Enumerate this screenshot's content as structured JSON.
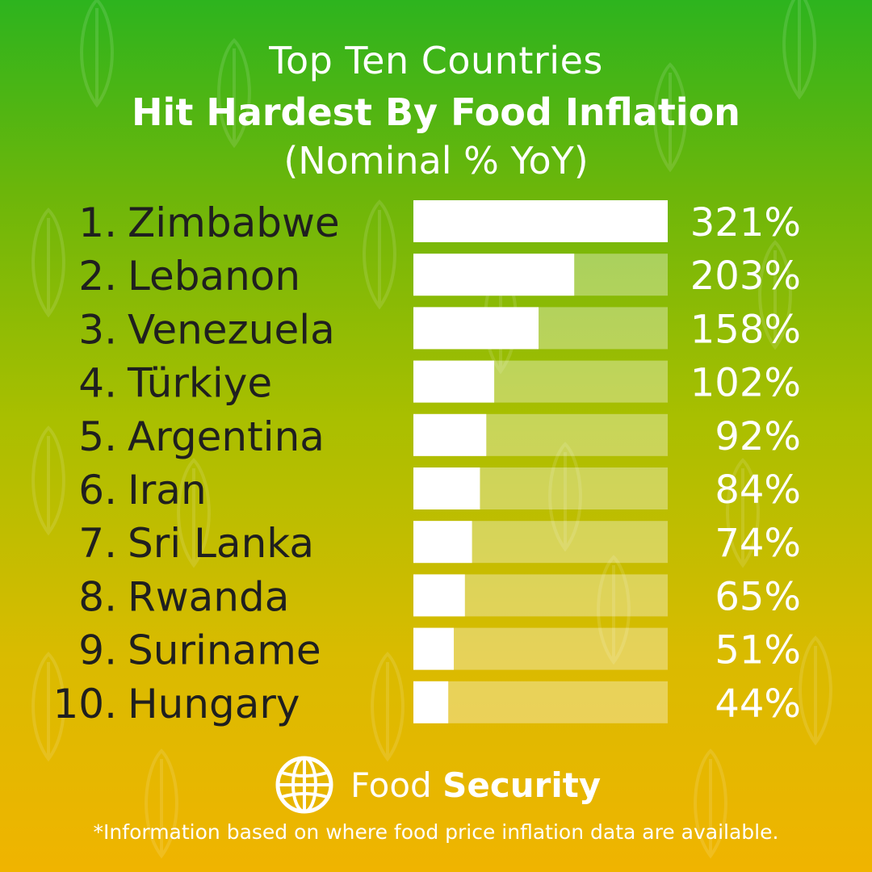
{
  "title": {
    "line1": "Top Ten Countries",
    "line2": "Hit Hardest By Food Inflation",
    "line3": "(Nominal % YoY)"
  },
  "colors": {
    "bar_fill": "#ffffff",
    "bar_track": "rgba(255,255,255,0.35)",
    "text_dark": "#1f1f1f",
    "text_light": "#ffffff",
    "gradient_top": "#2db41e",
    "gradient_bottom": "#f0b400"
  },
  "chart_data": {
    "type": "bar",
    "orientation": "horizontal",
    "categories": [
      "Zimbabwe",
      "Lebanon",
      "Venezuela",
      "Türkiye",
      "Argentina",
      "Iran",
      "Sri Lanka",
      "Rwanda",
      "Suriname",
      "Hungary"
    ],
    "ranks": [
      "1.",
      "2.",
      "3.",
      "4.",
      "5.",
      "6.",
      "7.",
      "8.",
      "9.",
      "10."
    ],
    "values": [
      321,
      203,
      158,
      102,
      92,
      84,
      74,
      65,
      51,
      44
    ],
    "value_labels": [
      "321%",
      "203%",
      "158%",
      "102%",
      "92%",
      "84%",
      "74%",
      "65%",
      "51%",
      "44%"
    ],
    "xlim": [
      0,
      321
    ],
    "grid": false,
    "legend": "none"
  },
  "logo": {
    "icon": "globe-icon",
    "text_regular": "Food",
    "text_bold": "Security"
  },
  "footnote": "*Information based on where food price inflation data are available."
}
